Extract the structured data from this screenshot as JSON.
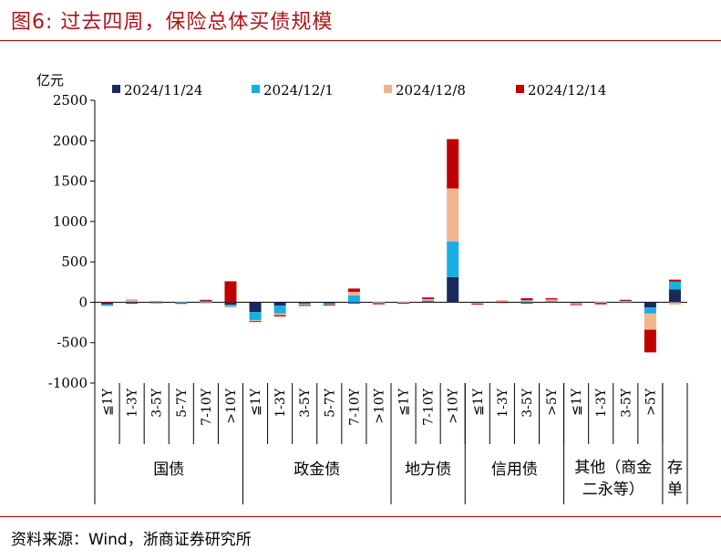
{
  "figure": {
    "title": "图6:   过去四周，保险总体买债规模",
    "source": "资料来源：Wind，浙商证券研究所"
  },
  "colors": {
    "title": "#b01318",
    "rule": "#c00000",
    "series": [
      "#1b2a5e",
      "#18aee6",
      "#f2b48e",
      "#c00000"
    ]
  },
  "chart_data": {
    "type": "bar",
    "stacked": true,
    "ylabel": "亿元",
    "ylim": [
      -1000,
      2500
    ],
    "yticks": [
      -1000,
      -500,
      0,
      500,
      1000,
      1500,
      2000,
      2500
    ],
    "legend_position": "top",
    "categories": [
      "≦1Y",
      "1-3Y",
      "3-5Y",
      "5-7Y",
      "7-10Y",
      ">10Y",
      "≦1Y",
      "1-3Y",
      "3-5Y",
      "5-7Y",
      "7-10Y",
      ">10Y",
      "≦1Y",
      "7-10Y",
      ">10Y",
      "≦1Y",
      "1-3Y",
      "3-5Y",
      ">5Y",
      "≦1Y",
      "1-3Y",
      "3-5Y",
      ">5Y",
      ""
    ],
    "groups": [
      {
        "label": "国债",
        "lines": [
          "国债"
        ],
        "count": 6
      },
      {
        "label": "政金债",
        "lines": [
          "政金债"
        ],
        "count": 6
      },
      {
        "label": "地方债",
        "lines": [
          "地方债"
        ],
        "count": 3
      },
      {
        "label": "信用债",
        "lines": [
          "信用债"
        ],
        "count": 4
      },
      {
        "label": "其他（商金二永等）",
        "lines": [
          "其他（商金",
          "二永等）"
        ],
        "count": 4
      },
      {
        "label": "存单",
        "lines": [
          "存",
          "单"
        ],
        "count": 1
      }
    ],
    "series": [
      {
        "name": "2024/11/24",
        "values": [
          -25,
          -10,
          -10,
          -5,
          -5,
          -30,
          -120,
          -40,
          -15,
          -15,
          -15,
          -10,
          -5,
          10,
          310,
          -5,
          5,
          -15,
          10,
          -5,
          -5,
          10,
          -65,
          160
        ]
      },
      {
        "name": "2024/12/1",
        "values": [
          -15,
          15,
          5,
          5,
          5,
          -20,
          -100,
          -100,
          -10,
          -10,
          85,
          -5,
          -5,
          10,
          440,
          -5,
          10,
          10,
          5,
          -10,
          -5,
          -5,
          -75,
          95
        ]
      },
      {
        "name": "2024/12/8",
        "values": [
          -5,
          25,
          -5,
          -5,
          5,
          -15,
          -15,
          -20,
          -10,
          -5,
          45,
          5,
          5,
          20,
          660,
          -10,
          10,
          15,
          20,
          -10,
          5,
          5,
          -200,
          -30
        ]
      },
      {
        "name": "2024/12/14",
        "values": [
          5,
          -5,
          5,
          -10,
          20,
          260,
          -10,
          -15,
          -10,
          -10,
          40,
          -10,
          -5,
          20,
          610,
          -10,
          -5,
          25,
          15,
          -10,
          -15,
          15,
          -280,
          25
        ]
      }
    ]
  }
}
